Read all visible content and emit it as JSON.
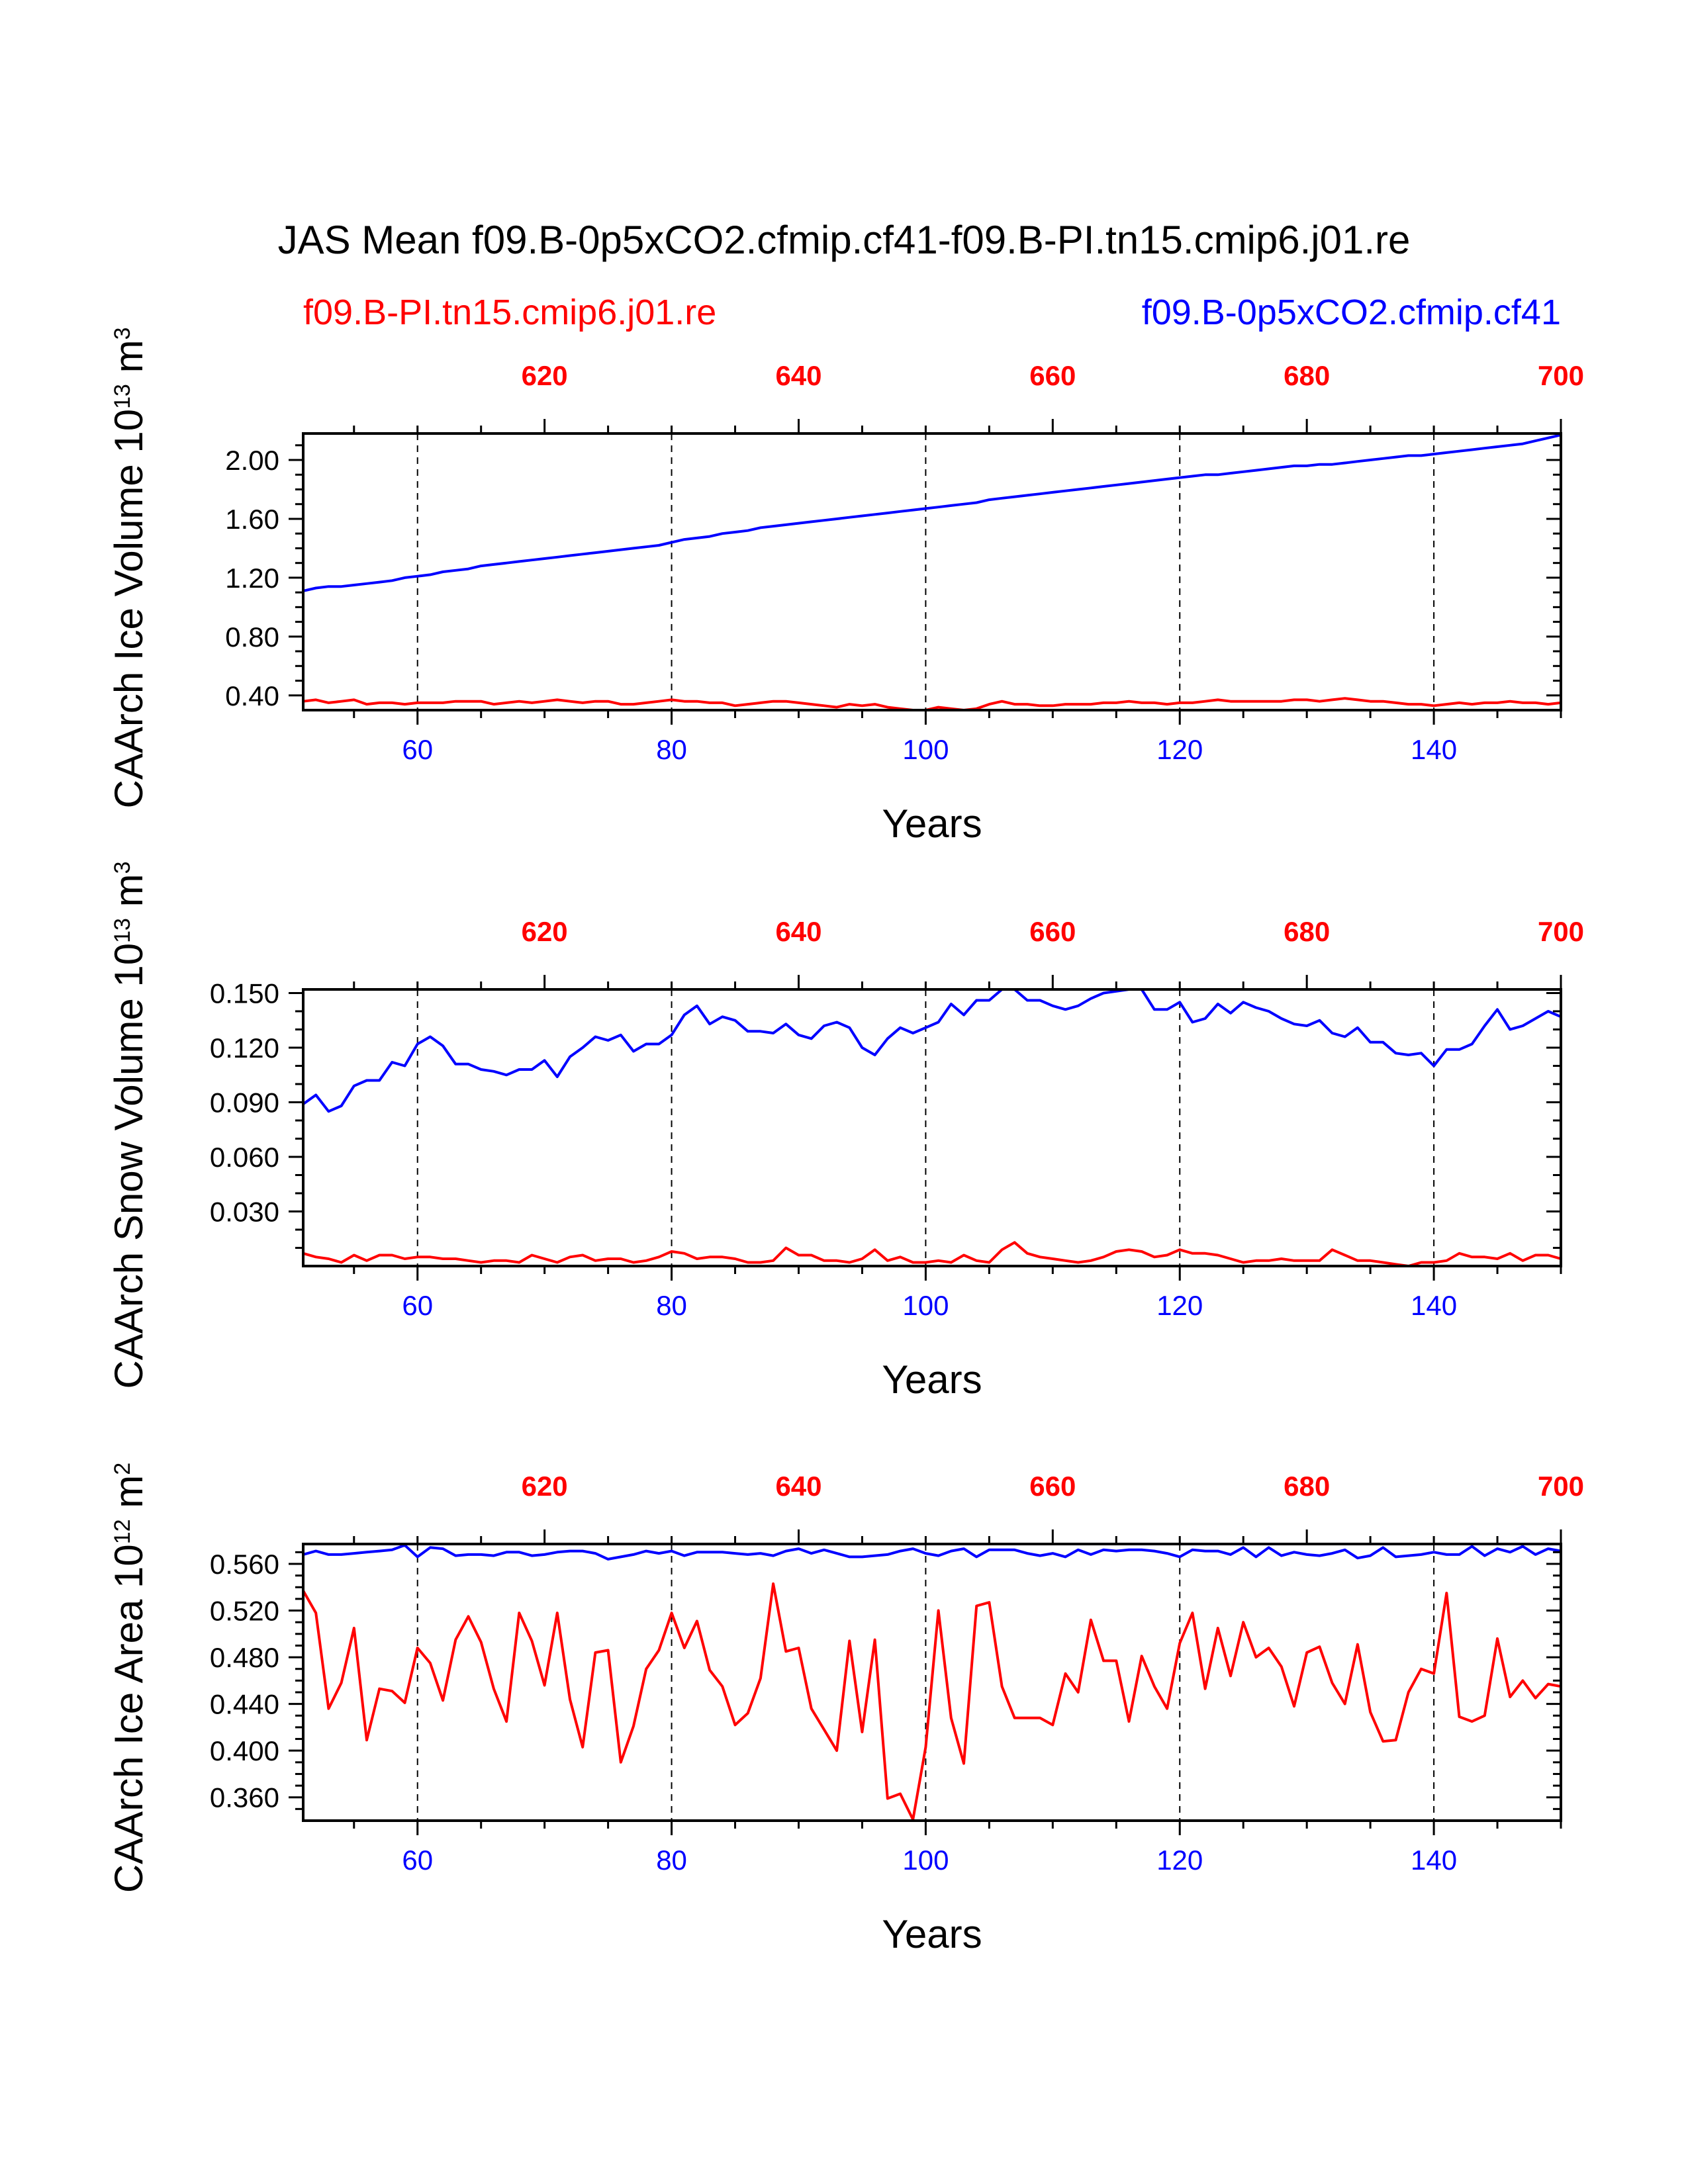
{
  "title": "JAS Mean f09.B-0p5xCO2.cfmip.cf41-f09.B-PI.tn15.cmip6.j01.re",
  "legend": {
    "left": {
      "label": "f09.B-PI.tn15.cmip6.j01.re",
      "color": "#ff0000"
    },
    "right": {
      "label": "f09.B-0p5xCO2.cfmip.cf41",
      "color": "#0000ff"
    }
  },
  "colors": {
    "red": "#ff0000",
    "blue": "#0000ff",
    "axis": "#000000"
  },
  "chart_data": [
    {
      "type": "line",
      "ylabel": "CAArch Ice Volume 10¹³ m³",
      "xlabel": "Years",
      "xlim": [
        51,
        150
      ],
      "ylim": [
        0.3,
        2.18
      ],
      "x2lim": [
        601,
        700
      ],
      "x_ticks": [
        60,
        80,
        100,
        120,
        140
      ],
      "x_tick_labels": [
        "60",
        "80",
        "100",
        "120",
        "140"
      ],
      "x2_ticks": [
        620,
        640,
        660,
        680,
        700
      ],
      "x2_tick_labels": [
        "620",
        "640",
        "660",
        "680",
        "700"
      ],
      "y_ticks": [
        0.4,
        0.8,
        1.2,
        1.6,
        2.0
      ],
      "y_tick_labels": [
        "0.40",
        "0.80",
        "1.20",
        "1.60",
        "2.00"
      ],
      "y_minor_step": 0.1,
      "grid_x": true,
      "series": [
        {
          "name": "f09.B-0p5xCO2.cfmip.cf41",
          "color": "#0000ff",
          "axis": "bottom",
          "x_start": 51,
          "values": [
            1.11,
            1.13,
            1.14,
            1.14,
            1.15,
            1.16,
            1.17,
            1.18,
            1.2,
            1.21,
            1.22,
            1.24,
            1.25,
            1.26,
            1.28,
            1.29,
            1.3,
            1.31,
            1.32,
            1.33,
            1.34,
            1.35,
            1.36,
            1.37,
            1.38,
            1.39,
            1.4,
            1.41,
            1.42,
            1.44,
            1.46,
            1.47,
            1.48,
            1.5,
            1.51,
            1.52,
            1.54,
            1.55,
            1.56,
            1.57,
            1.58,
            1.59,
            1.6,
            1.61,
            1.62,
            1.63,
            1.64,
            1.65,
            1.66,
            1.67,
            1.68,
            1.69,
            1.7,
            1.71,
            1.73,
            1.74,
            1.75,
            1.76,
            1.77,
            1.78,
            1.79,
            1.8,
            1.81,
            1.82,
            1.83,
            1.84,
            1.85,
            1.86,
            1.87,
            1.88,
            1.89,
            1.9,
            1.9,
            1.91,
            1.92,
            1.93,
            1.94,
            1.95,
            1.96,
            1.96,
            1.97,
            1.97,
            1.98,
            1.99,
            2.0,
            2.01,
            2.02,
            2.03,
            2.03,
            2.04,
            2.05,
            2.06,
            2.07,
            2.08,
            2.09,
            2.1,
            2.11,
            2.13,
            2.15,
            2.17
          ]
        },
        {
          "name": "f09.B-PI.tn15.cmip6.j01.re",
          "color": "#ff0000",
          "axis": "top",
          "x_start": 601,
          "values": [
            0.36,
            0.37,
            0.35,
            0.36,
            0.37,
            0.34,
            0.35,
            0.35,
            0.34,
            0.35,
            0.35,
            0.35,
            0.36,
            0.36,
            0.36,
            0.34,
            0.35,
            0.36,
            0.35,
            0.36,
            0.37,
            0.36,
            0.35,
            0.36,
            0.36,
            0.34,
            0.34,
            0.35,
            0.36,
            0.37,
            0.36,
            0.36,
            0.35,
            0.35,
            0.33,
            0.34,
            0.35,
            0.36,
            0.36,
            0.35,
            0.34,
            0.33,
            0.32,
            0.34,
            0.33,
            0.34,
            0.32,
            0.31,
            0.3,
            0.3,
            0.32,
            0.31,
            0.3,
            0.31,
            0.34,
            0.36,
            0.34,
            0.34,
            0.33,
            0.33,
            0.34,
            0.34,
            0.34,
            0.35,
            0.35,
            0.36,
            0.35,
            0.35,
            0.34,
            0.35,
            0.35,
            0.36,
            0.37,
            0.36,
            0.36,
            0.36,
            0.36,
            0.36,
            0.37,
            0.37,
            0.36,
            0.37,
            0.38,
            0.37,
            0.36,
            0.36,
            0.35,
            0.34,
            0.34,
            0.33,
            0.34,
            0.35,
            0.34,
            0.35,
            0.35,
            0.36,
            0.35,
            0.35,
            0.34,
            0.35
          ]
        }
      ]
    },
    {
      "type": "line",
      "ylabel": "CAArch Snow Volume 10¹³ m³",
      "xlabel": "Years",
      "xlim": [
        51,
        150
      ],
      "ylim": [
        0.0,
        0.152
      ],
      "x2lim": [
        601,
        700
      ],
      "x_ticks": [
        60,
        80,
        100,
        120,
        140
      ],
      "x_tick_labels": [
        "60",
        "80",
        "100",
        "120",
        "140"
      ],
      "x2_ticks": [
        620,
        640,
        660,
        680,
        700
      ],
      "x2_tick_labels": [
        "620",
        "640",
        "660",
        "680",
        "700"
      ],
      "y_ticks": [
        0.03,
        0.06,
        0.09,
        0.12,
        0.15
      ],
      "y_tick_labels": [
        "0.030",
        "0.060",
        "0.090",
        "0.120",
        "0.150"
      ],
      "y_minor_step": 0.01,
      "grid_x": true,
      "series": [
        {
          "name": "f09.B-0p5xCO2.cfmip.cf41",
          "color": "#0000ff",
          "axis": "bottom",
          "x_start": 51,
          "values": [
            0.089,
            0.094,
            0.085,
            0.088,
            0.099,
            0.102,
            0.102,
            0.112,
            0.11,
            0.122,
            0.126,
            0.121,
            0.111,
            0.111,
            0.108,
            0.107,
            0.105,
            0.108,
            0.108,
            0.113,
            0.104,
            0.115,
            0.12,
            0.126,
            0.124,
            0.127,
            0.118,
            0.122,
            0.122,
            0.127,
            0.138,
            0.143,
            0.133,
            0.137,
            0.135,
            0.129,
            0.129,
            0.128,
            0.133,
            0.127,
            0.125,
            0.132,
            0.134,
            0.131,
            0.12,
            0.116,
            0.125,
            0.131,
            0.128,
            0.131,
            0.134,
            0.144,
            0.138,
            0.146,
            0.146,
            0.152,
            0.152,
            0.146,
            0.146,
            0.143,
            0.141,
            0.143,
            0.147,
            0.15,
            0.151,
            0.152,
            0.152,
            0.141,
            0.141,
            0.145,
            0.134,
            0.136,
            0.144,
            0.139,
            0.145,
            0.142,
            0.14,
            0.136,
            0.133,
            0.132,
            0.135,
            0.128,
            0.126,
            0.131,
            0.123,
            0.123,
            0.117,
            0.116,
            0.117,
            0.11,
            0.119,
            0.119,
            0.122,
            0.132,
            0.141,
            0.13,
            0.132,
            0.136,
            0.14,
            0.137
          ]
        },
        {
          "name": "f09.B-PI.tn15.cmip6.j01.re",
          "color": "#ff0000",
          "axis": "top",
          "x_start": 601,
          "values": [
            0.007,
            0.005,
            0.004,
            0.002,
            0.006,
            0.003,
            0.006,
            0.006,
            0.004,
            0.005,
            0.005,
            0.004,
            0.004,
            0.003,
            0.002,
            0.003,
            0.003,
            0.002,
            0.006,
            0.004,
            0.002,
            0.005,
            0.006,
            0.003,
            0.004,
            0.004,
            0.002,
            0.003,
            0.005,
            0.008,
            0.007,
            0.004,
            0.005,
            0.005,
            0.004,
            0.002,
            0.002,
            0.003,
            0.01,
            0.006,
            0.006,
            0.003,
            0.003,
            0.002,
            0.004,
            0.009,
            0.003,
            0.005,
            0.002,
            0.002,
            0.003,
            0.002,
            0.006,
            0.003,
            0.002,
            0.009,
            0.013,
            0.007,
            0.005,
            0.004,
            0.003,
            0.002,
            0.003,
            0.005,
            0.008,
            0.009,
            0.008,
            0.005,
            0.006,
            0.009,
            0.007,
            0.007,
            0.006,
            0.004,
            0.002,
            0.003,
            0.003,
            0.004,
            0.003,
            0.003,
            0.003,
            0.009,
            0.006,
            0.003,
            0.003,
            0.002,
            0.001,
            0.0,
            0.002,
            0.002,
            0.003,
            0.007,
            0.005,
            0.005,
            0.004,
            0.007,
            0.003,
            0.006,
            0.006,
            0.004
          ]
        }
      ]
    },
    {
      "type": "line",
      "ylabel": "CAArch Ice Area 10¹² m²",
      "xlabel": "Years",
      "xlim": [
        51,
        150
      ],
      "ylim": [
        0.34,
        0.577
      ],
      "x2lim": [
        601,
        700
      ],
      "x_ticks": [
        60,
        80,
        100,
        120,
        140
      ],
      "x_tick_labels": [
        "60",
        "80",
        "100",
        "120",
        "140"
      ],
      "x2_ticks": [
        620,
        640,
        660,
        680,
        700
      ],
      "x2_tick_labels": [
        "620",
        "640",
        "660",
        "680",
        "700"
      ],
      "y_ticks": [
        0.36,
        0.4,
        0.44,
        0.48,
        0.52,
        0.56
      ],
      "y_tick_labels": [
        "0.360",
        "0.400",
        "0.440",
        "0.480",
        "0.520",
        "0.560"
      ],
      "y_minor_step": 0.01,
      "grid_x": true,
      "series": [
        {
          "name": "f09.B-0p5xCO2.cfmip.cf41",
          "color": "#0000ff",
          "axis": "bottom",
          "x_start": 51,
          "values": [
            0.568,
            0.571,
            0.568,
            0.568,
            0.569,
            0.57,
            0.571,
            0.572,
            0.576,
            0.566,
            0.574,
            0.573,
            0.567,
            0.568,
            0.568,
            0.567,
            0.57,
            0.57,
            0.567,
            0.568,
            0.57,
            0.571,
            0.571,
            0.569,
            0.564,
            0.566,
            0.568,
            0.571,
            0.569,
            0.571,
            0.567,
            0.57,
            0.57,
            0.57,
            0.569,
            0.568,
            0.569,
            0.567,
            0.571,
            0.573,
            0.569,
            0.572,
            0.569,
            0.566,
            0.566,
            0.567,
            0.568,
            0.571,
            0.573,
            0.569,
            0.567,
            0.571,
            0.573,
            0.566,
            0.572,
            0.572,
            0.572,
            0.569,
            0.567,
            0.569,
            0.566,
            0.572,
            0.568,
            0.572,
            0.571,
            0.572,
            0.572,
            0.571,
            0.569,
            0.566,
            0.572,
            0.571,
            0.571,
            0.568,
            0.574,
            0.566,
            0.574,
            0.567,
            0.57,
            0.568,
            0.567,
            0.569,
            0.572,
            0.565,
            0.567,
            0.574,
            0.566,
            0.567,
            0.568,
            0.57,
            0.568,
            0.568,
            0.575,
            0.567,
            0.573,
            0.57,
            0.575,
            0.568,
            0.573,
            0.571
          ]
        },
        {
          "name": "f09.B-PI.tn15.cmip6.j01.re",
          "color": "#ff0000",
          "axis": "top",
          "x_start": 601,
          "values": [
            0.537,
            0.518,
            0.436,
            0.458,
            0.505,
            0.409,
            0.453,
            0.451,
            0.441,
            0.488,
            0.475,
            0.443,
            0.495,
            0.515,
            0.493,
            0.453,
            0.425,
            0.518,
            0.494,
            0.456,
            0.518,
            0.444,
            0.403,
            0.484,
            0.486,
            0.39,
            0.421,
            0.47,
            0.486,
            0.518,
            0.488,
            0.511,
            0.469,
            0.455,
            0.422,
            0.432,
            0.462,
            0.543,
            0.485,
            0.488,
            0.436,
            0.418,
            0.4,
            0.494,
            0.416,
            0.495,
            0.359,
            0.363,
            0.341,
            0.403,
            0.52,
            0.428,
            0.389,
            0.524,
            0.527,
            0.455,
            0.428,
            0.428,
            0.428,
            0.422,
            0.466,
            0.45,
            0.512,
            0.477,
            0.477,
            0.425,
            0.481,
            0.455,
            0.436,
            0.492,
            0.518,
            0.453,
            0.505,
            0.464,
            0.51,
            0.48,
            0.488,
            0.472,
            0.438,
            0.484,
            0.489,
            0.458,
            0.44,
            0.491,
            0.433,
            0.408,
            0.409,
            0.45,
            0.47,
            0.466,
            0.535,
            0.429,
            0.425,
            0.43,
            0.496,
            0.446,
            0.46,
            0.445,
            0.457,
            0.455
          ]
        }
      ]
    }
  ]
}
